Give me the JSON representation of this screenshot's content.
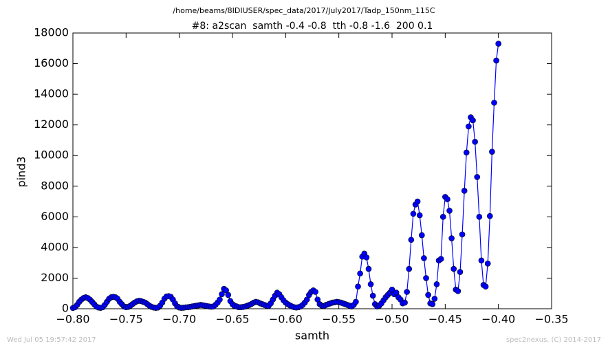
{
  "chart_data": {
    "type": "line",
    "title": "/home/beams/8IDIUSER/spec_data/2017/July2017/Tadp_150nm_115C",
    "subtitle": "#8: a2scan  samth -0.4 -0.8  tth -0.8 -1.6  200 0.1",
    "x_label": "samth",
    "y_label": "pind3",
    "footer_left": "Wed Jul 05 19:57:42 2017",
    "footer_right": "spec2nexus, (C) 2014-2017",
    "xlim": [
      -0.8,
      -0.35
    ],
    "ylim": [
      0,
      18000
    ],
    "xticks": [
      {
        "value": -0.8,
        "label": "−0.80"
      },
      {
        "value": -0.75,
        "label": "−0.75"
      },
      {
        "value": -0.7,
        "label": "−0.70"
      },
      {
        "value": -0.65,
        "label": "−0.65"
      },
      {
        "value": -0.6,
        "label": "−0.60"
      },
      {
        "value": -0.55,
        "label": "−0.55"
      },
      {
        "value": -0.5,
        "label": "−0.50"
      },
      {
        "value": -0.45,
        "label": "−0.45"
      },
      {
        "value": -0.4,
        "label": "−0.40"
      },
      {
        "value": -0.35,
        "label": "−0.35"
      }
    ],
    "yticks": [
      0,
      2000,
      4000,
      6000,
      8000,
      10000,
      12000,
      14000,
      16000,
      18000
    ],
    "grid": false,
    "x": [
      -0.8,
      -0.798,
      -0.796,
      -0.794,
      -0.792,
      -0.79,
      -0.788,
      -0.786,
      -0.784,
      -0.782,
      -0.78,
      -0.778,
      -0.776,
      -0.774,
      -0.772,
      -0.77,
      -0.768,
      -0.766,
      -0.764,
      -0.762,
      -0.76,
      -0.758,
      -0.756,
      -0.754,
      -0.752,
      -0.75,
      -0.748,
      -0.746,
      -0.744,
      -0.742,
      -0.74,
      -0.738,
      -0.736,
      -0.734,
      -0.732,
      -0.73,
      -0.728,
      -0.726,
      -0.724,
      -0.722,
      -0.72,
      -0.718,
      -0.716,
      -0.714,
      -0.712,
      -0.71,
      -0.708,
      -0.706,
      -0.704,
      -0.702,
      -0.7,
      -0.698,
      -0.696,
      -0.694,
      -0.692,
      -0.69,
      -0.688,
      -0.686,
      -0.684,
      -0.682,
      -0.68,
      -0.678,
      -0.676,
      -0.674,
      -0.672,
      -0.67,
      -0.668,
      -0.666,
      -0.664,
      -0.662,
      -0.66,
      -0.658,
      -0.656,
      -0.654,
      -0.652,
      -0.65,
      -0.648,
      -0.646,
      -0.644,
      -0.642,
      -0.64,
      -0.638,
      -0.636,
      -0.634,
      -0.632,
      -0.63,
      -0.628,
      -0.626,
      -0.624,
      -0.622,
      -0.62,
      -0.618,
      -0.616,
      -0.614,
      -0.612,
      -0.61,
      -0.608,
      -0.606,
      -0.604,
      -0.602,
      -0.6,
      -0.598,
      -0.596,
      -0.594,
      -0.592,
      -0.59,
      -0.588,
      -0.586,
      -0.584,
      -0.582,
      -0.58,
      -0.578,
      -0.576,
      -0.574,
      -0.572,
      -0.57,
      -0.568,
      -0.566,
      -0.564,
      -0.562,
      -0.56,
      -0.558,
      -0.556,
      -0.554,
      -0.552,
      -0.55,
      -0.548,
      -0.546,
      -0.544,
      -0.542,
      -0.54,
      -0.538,
      -0.536,
      -0.534,
      -0.532,
      -0.53,
      -0.528,
      -0.526,
      -0.524,
      -0.522,
      -0.52,
      -0.518,
      -0.516,
      -0.514,
      -0.512,
      -0.51,
      -0.508,
      -0.506,
      -0.504,
      -0.502,
      -0.5,
      -0.498,
      -0.496,
      -0.494,
      -0.492,
      -0.49,
      -0.488,
      -0.486,
      -0.484,
      -0.482,
      -0.48,
      -0.478,
      -0.476,
      -0.474,
      -0.472,
      -0.47,
      -0.468,
      -0.466,
      -0.464,
      -0.462,
      -0.46,
      -0.458,
      -0.456,
      -0.454,
      -0.452,
      -0.45,
      -0.448,
      -0.446,
      -0.444,
      -0.442,
      -0.44,
      -0.438,
      -0.436,
      -0.434,
      -0.432,
      -0.43,
      -0.428,
      -0.426,
      -0.424,
      -0.422,
      -0.42,
      -0.418,
      -0.416,
      -0.414,
      -0.412,
      -0.41,
      -0.408,
      -0.406,
      -0.404,
      -0.402,
      -0.4
    ],
    "series": [
      {
        "name": "pind3",
        "color": "#0000ff",
        "values": [
          50,
          100,
          250,
          450,
          600,
          700,
          750,
          700,
          600,
          450,
          300,
          150,
          80,
          60,
          100,
          250,
          450,
          650,
          750,
          780,
          750,
          650,
          450,
          300,
          150,
          100,
          120,
          200,
          300,
          400,
          480,
          520,
          500,
          450,
          400,
          300,
          200,
          120,
          80,
          60,
          80,
          200,
          400,
          650,
          800,
          820,
          780,
          600,
          350,
          150,
          80,
          60,
          70,
          90,
          100,
          120,
          150,
          180,
          200,
          220,
          250,
          230,
          200,
          180,
          150,
          130,
          150,
          250,
          400,
          600,
          950,
          1300,
          1200,
          900,
          500,
          300,
          200,
          150,
          100,
          100,
          120,
          150,
          200,
          250,
          320,
          400,
          450,
          420,
          350,
          300,
          250,
          200,
          180,
          350,
          600,
          850,
          1050,
          950,
          750,
          550,
          400,
          300,
          220,
          150,
          100,
          80,
          100,
          150,
          250,
          400,
          600,
          900,
          1100,
          1200,
          1100,
          600,
          300,
          200,
          180,
          250,
          300,
          350,
          400,
          420,
          450,
          430,
          400,
          350,
          300,
          250,
          200,
          150,
          250,
          450,
          1450,
          2300,
          3400,
          3600,
          3350,
          2600,
          1600,
          850,
          300,
          150,
          200,
          350,
          550,
          750,
          900,
          1050,
          1250,
          950,
          1050,
          750,
          600,
          350,
          400,
          1100,
          2600,
          4500,
          6200,
          6800,
          7000,
          6100,
          4800,
          3300,
          2000,
          900,
          350,
          300,
          650,
          1600,
          3150,
          3250,
          6000,
          7300,
          7150,
          6400,
          4600,
          2600,
          1250,
          1150,
          2400,
          4850,
          7700,
          10200,
          11900,
          12500,
          12300,
          10900,
          8600,
          6000,
          3150,
          1550,
          1450,
          2950,
          6050,
          10250,
          13450,
          16200,
          17300
        ]
      }
    ]
  }
}
